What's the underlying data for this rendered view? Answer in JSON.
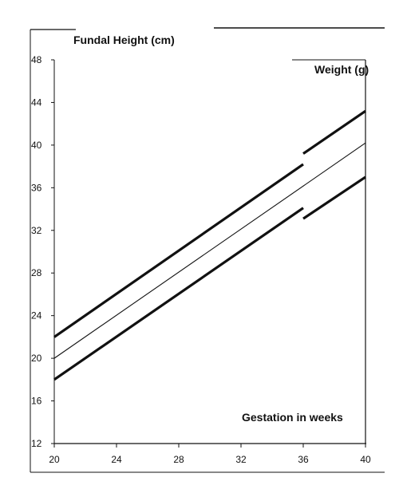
{
  "chart_data": {
    "type": "line",
    "ylabel": "Fundal Height (cm)",
    "y2label": "Weight (g)",
    "xlabel": "Gestation in weeks",
    "xlim": [
      20,
      40
    ],
    "ylim": [
      12,
      48
    ],
    "x_ticks": [
      20,
      24,
      28,
      32,
      36,
      40
    ],
    "y_ticks": [
      12,
      16,
      20,
      24,
      28,
      32,
      36,
      40,
      44,
      48
    ],
    "grid": false,
    "series": [
      {
        "style": "thick",
        "segments": [
          {
            "x": [
              20,
              36
            ],
            "y": [
              22,
              38.2
            ]
          },
          {
            "x": [
              36,
              40
            ],
            "y": [
              39.2,
              43.2
            ]
          }
        ]
      },
      {
        "style": "thin",
        "segments": [
          {
            "x": [
              20,
              40
            ],
            "y": [
              20,
              40.2
            ]
          }
        ]
      },
      {
        "style": "thick",
        "segments": [
          {
            "x": [
              20,
              36
            ],
            "y": [
              18,
              34.1
            ]
          },
          {
            "x": [
              36,
              40
            ],
            "y": [
              33.1,
              37.0
            ]
          }
        ]
      }
    ],
    "colors": {
      "line": "#111111",
      "axis": "#111111"
    }
  }
}
